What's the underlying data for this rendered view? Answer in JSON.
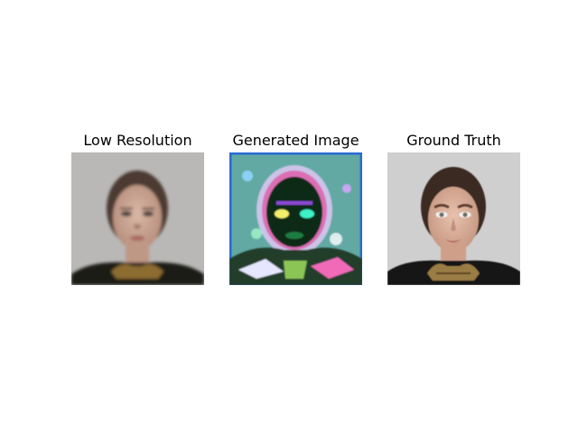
{
  "panels": [
    {
      "title": "Low Resolution"
    },
    {
      "title": "Generated Image"
    },
    {
      "title": "Ground Truth"
    }
  ]
}
